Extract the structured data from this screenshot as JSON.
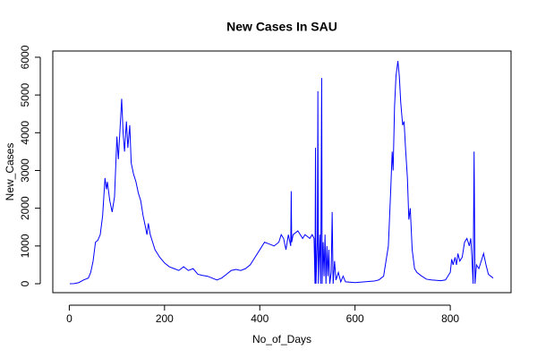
{
  "chart_data": {
    "type": "line",
    "title": "New Cases In SAU",
    "xlabel": "No_of_Days",
    "ylabel": "New_Cases",
    "x": [
      1,
      10,
      20,
      30,
      40,
      45,
      50,
      55,
      60,
      65,
      70,
      75,
      78,
      80,
      85,
      90,
      95,
      100,
      103,
      107,
      110,
      113,
      116,
      120,
      123,
      127,
      130,
      135,
      140,
      145,
      150,
      155,
      160,
      163,
      166,
      170,
      175,
      180,
      190,
      200,
      210,
      220,
      230,
      240,
      250,
      260,
      270,
      280,
      290,
      300,
      310,
      320,
      330,
      340,
      350,
      360,
      370,
      380,
      390,
      400,
      410,
      420,
      430,
      440,
      445,
      450,
      455,
      460,
      465,
      466,
      467,
      470,
      480,
      490,
      495,
      500,
      505,
      510,
      514,
      516,
      517,
      518,
      521,
      522,
      523,
      526,
      528,
      530,
      531,
      533,
      535,
      537,
      539,
      541,
      543,
      545,
      547,
      550,
      552,
      554,
      557,
      560,
      565,
      570,
      575,
      580,
      600,
      620,
      640,
      650,
      660,
      670,
      675,
      678,
      680,
      683,
      686,
      690,
      693,
      696,
      700,
      703,
      706,
      710,
      713,
      716,
      720,
      725,
      730,
      740,
      750,
      760,
      780,
      790,
      800,
      803,
      806,
      810,
      813,
      816,
      820,
      825,
      830,
      835,
      840,
      843,
      845,
      848,
      850,
      852,
      855,
      860,
      865,
      870,
      875,
      880,
      885,
      890
    ],
    "series": [
      {
        "name": "New_Cases",
        "color": "#0000ff",
        "values": [
          0,
          2,
          30,
          100,
          150,
          300,
          600,
          1100,
          1150,
          1300,
          1800,
          2800,
          2500,
          2700,
          2200,
          1900,
          2300,
          3900,
          3300,
          4200,
          4900,
          4000,
          3500,
          4300,
          3600,
          4200,
          3200,
          2900,
          2700,
          2400,
          2200,
          1800,
          1500,
          1300,
          1600,
          1300,
          1100,
          900,
          700,
          550,
          450,
          400,
          350,
          450,
          350,
          400,
          250,
          220,
          200,
          150,
          100,
          150,
          250,
          350,
          380,
          350,
          400,
          500,
          700,
          900,
          1100,
          1050,
          1000,
          1100,
          1300,
          1200,
          900,
          1300,
          1000,
          2450,
          1100,
          1300,
          1400,
          1200,
          1300,
          1250,
          1200,
          1300,
          1200,
          0,
          3600,
          0,
          1200,
          5100,
          0,
          1300,
          0,
          5450,
          0,
          1100,
          200,
          1300,
          0,
          1000,
          200,
          900,
          0,
          300,
          1900,
          0,
          600,
          100,
          300,
          50,
          200,
          50,
          30,
          50,
          70,
          100,
          200,
          1000,
          2500,
          3500,
          3000,
          4700,
          5500,
          5900,
          5500,
          4800,
          4200,
          4300,
          3600,
          2800,
          1700,
          2000,
          900,
          400,
          300,
          200,
          120,
          100,
          80,
          100,
          300,
          650,
          500,
          700,
          500,
          800,
          600,
          700,
          1100,
          1200,
          1000,
          1200,
          800,
          0,
          3500,
          0,
          500,
          400,
          600,
          800,
          500,
          250,
          200,
          150
        ]
      }
    ],
    "xlim": [
      -34.6,
      927.6
    ],
    "ylim": [
      -237,
      6165
    ],
    "xticks": [
      0,
      200,
      400,
      600,
      800
    ],
    "yticks": [
      0,
      1000,
      2000,
      3000,
      4000,
      5000,
      6000
    ]
  }
}
